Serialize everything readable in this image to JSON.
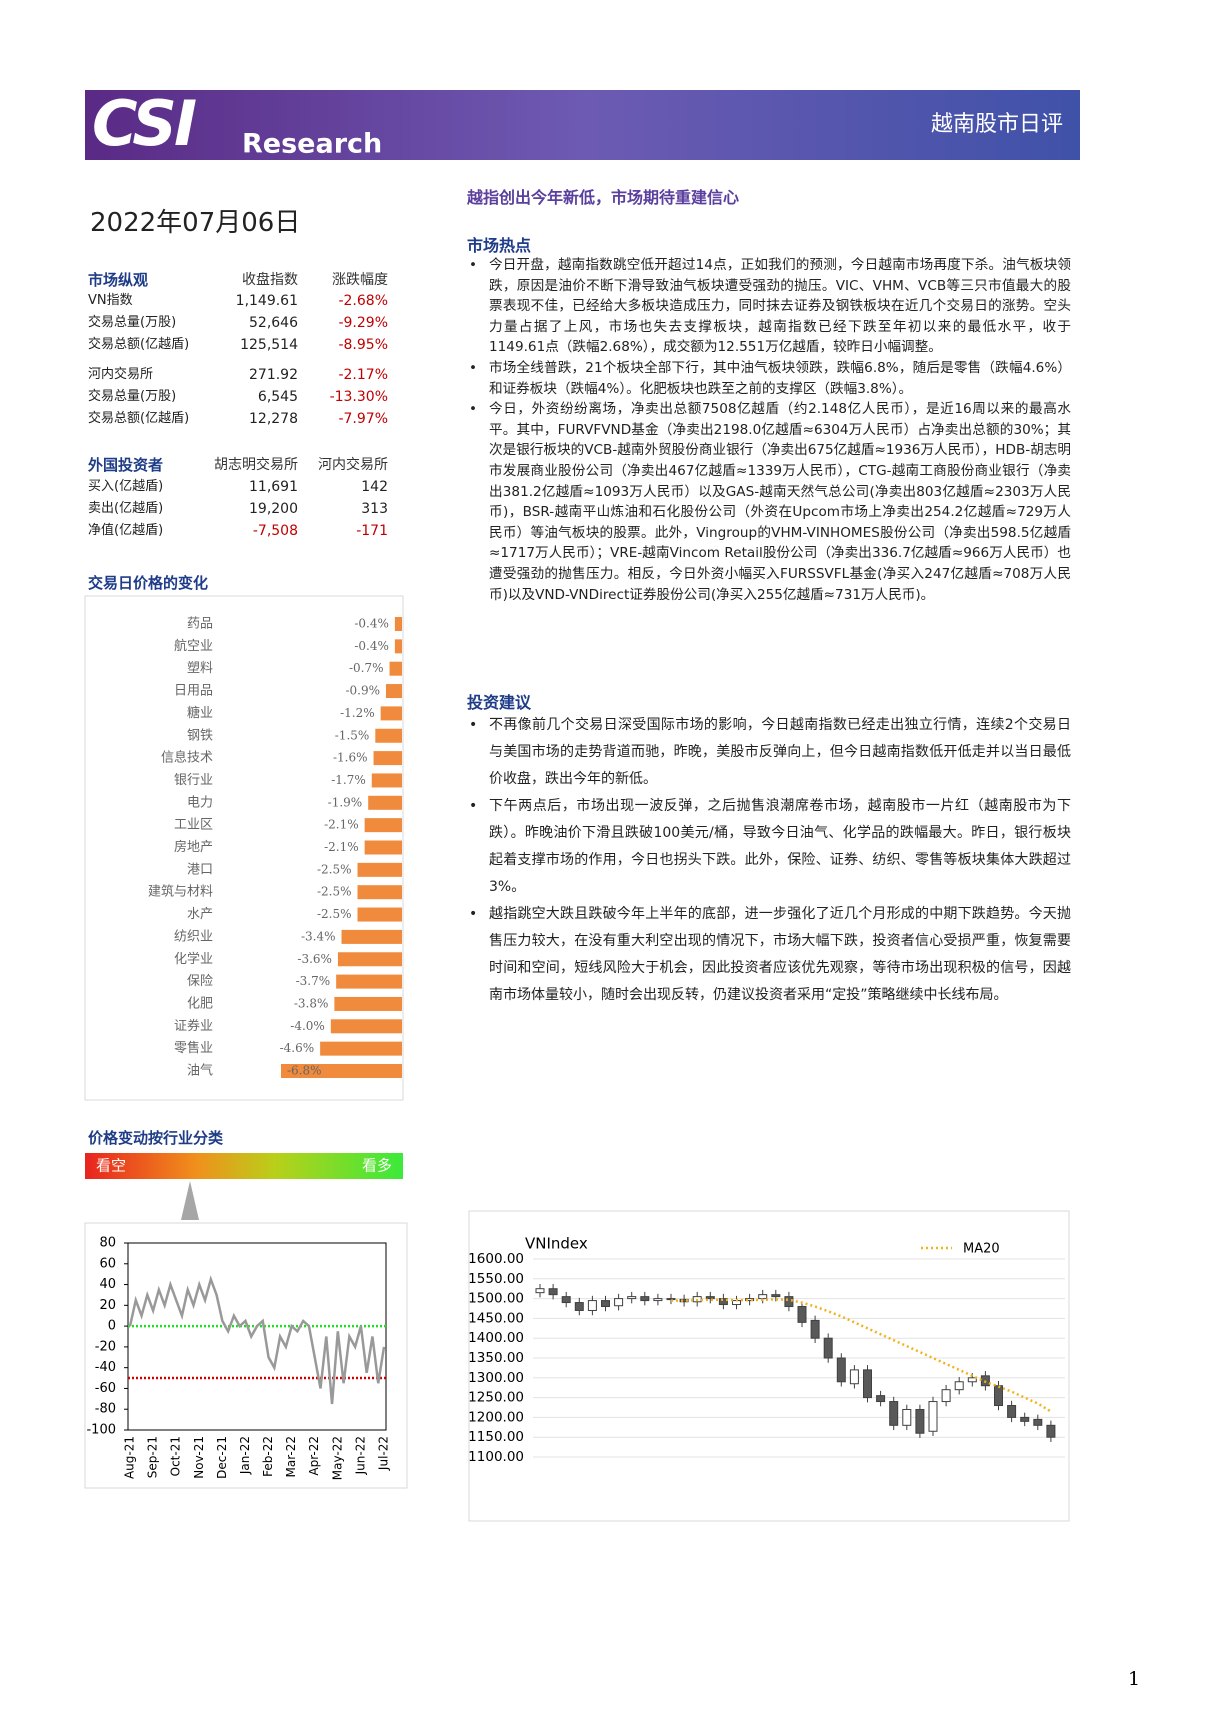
{
  "header": {
    "logo": "CSI",
    "brand": "Research",
    "title": "越南股市日评"
  },
  "date": "2022年07月06日",
  "market_overview": {
    "header": [
      "市场纵观",
      "收盘指数",
      "涨跌幅度"
    ],
    "rows": [
      [
        "VN指数",
        "1,149.61",
        "-2.68%"
      ],
      [
        "交易总量(万股)",
        "52,646",
        "-9.29%"
      ],
      [
        "交易总额(亿越盾)",
        "125,514",
        "-8.95%"
      ],
      [
        "河内交易所",
        "271.92",
        "-2.17%"
      ],
      [
        "交易总量(万股)",
        "6,545",
        "-13.30%"
      ],
      [
        "交易总额(亿越盾)",
        "12,278",
        "-7.97%"
      ]
    ]
  },
  "foreign_investors": {
    "header": [
      "外国投资者",
      "胡志明交易所",
      "河内交易所"
    ],
    "rows": [
      [
        "买入(亿越盾)",
        "11,691",
        "142"
      ],
      [
        "卖出(亿越盾)",
        "19,200",
        "313"
      ],
      [
        "净值(亿越盾)",
        "-7,508",
        "-171"
      ]
    ]
  },
  "headline": "越指创出今年新低，市场期待重建信心",
  "market_hotspots": {
    "title": "市场热点",
    "items": [
      "今日开盘，越南指数跳空低开超过14点，正如我们的预测，今日越南市场再度下杀。油气板块领跌，原因是油价不断下滑导致油气板块遭受强劲的抛压。VIC、VHM、VCB等三只市值最大的股票表现不佳，已经给大多板块造成压力，同时抹去证券及钢铁板块在近几个交易日的涨势。空头力量占据了上风，市场也失去支撑板块，越南指数已经下跌至年初以来的最低水平，收于1149.61点（跌幅2.68%），成交额为12.551万亿越盾，较昨日小幅调整。",
      "市场全线普跌，21个板块全部下行，其中油气板块领跌，跌幅6.8%，随后是零售（跌幅4.6%）和证券板块（跌幅4%）。化肥板块也跌至之前的支撑区（跌幅3.8%）。",
      "今日，外资纷纷离场，净卖出总额7508亿越盾（约2.148亿人民币），是近16周以来的最高水平。其中，FURVFVND基金（净卖出2198.0亿越盾≈6304万人民币）占净卖出总额的30%；其次是银行板块的VCB-越南外贸股份商业银行（净卖出675亿越盾≈1936万人民币），HDB-胡志明市发展商业股份公司（净卖出467亿越盾≈1339万人民币），CTG-越南工商股份商业银行（净卖出381.2亿越盾≈1093万人民币）以及GAS-越南天然气总公司(净卖出803亿越盾≈2303万人民币)，BSR-越南平山炼油和石化股份公司（外资在Upcom市场上净卖出254.2亿越盾≈729万人民币）等油气板块的股票。此外，Vingroup的VHM-VINHOMES股份公司（净卖出598.5亿越盾≈1717万人民币）；VRE-越南Vincom Retail股份公司（净卖出336.7亿越盾≈966万人民币）也遭受强劲的抛售压力。相反，今日外资小幅买入FURSSVFL基金(净买入247亿越盾≈708万人民币)以及VND-VNDirect证券股份公司(净买入255亿越盾≈731万人民币)。"
    ]
  },
  "investment_advice": {
    "title": "投资建议",
    "items": [
      "不再像前几个交易日深受国际市场的影响，今日越南指数已经走出独立行情，连续2个交易日与美国市场的走势背道而驰，昨晚，美股市反弹向上，但今日越南指数低开低走并以当日最低价收盘，跌出今年的新低。",
      "下午两点后，市场出现一波反弹，之后抛售浪潮席卷市场，越南股市一片红（越南股市为下跌）。昨晚油价下滑且跌破100美元/桶，导致今日油气、化学品的跌幅最大。昨日，银行板块起着支撑市场的作用，今日也拐头下跌。此外，保险、证券、纺织、零售等板块集体大跌超过3%。",
      "越指跳空大跌且跌破今年上半年的底部，进一步强化了近几个月形成的中期下跌趋势。今天抛售压力较大，在没有重大利空出现的情况下，市场大幅下跌，投资者信心受损严重，恢复需要时间和空间，短线风险大于机会，因此投资者应该优先观察，等待市场出现积极的信号，因越南市场体量较小，随时会出现反转，仍建议投资者采用“定投”策略继续中长线布局。"
    ]
  },
  "sentiment_scale": {
    "title": "价格变动按行业分类",
    "bearish": "看空",
    "bullish": "看多"
  },
  "page_number": "1",
  "chart_data": [
    {
      "type": "bar",
      "orientation": "horizontal",
      "title": "交易日价格的变化",
      "categories": [
        "药品",
        "航空业",
        "塑料",
        "日用品",
        "糖业",
        "钢铁",
        "信息技术",
        "银行业",
        "电力",
        "工业区",
        "房地产",
        "港口",
        "建筑与材料",
        "水产",
        "纺织业",
        "化学业",
        "保险",
        "化肥",
        "证券业",
        "零售业",
        "油气"
      ],
      "values": [
        -0.4,
        -0.4,
        -0.7,
        -0.9,
        -1.2,
        -1.5,
        -1.6,
        -1.7,
        -1.9,
        -2.1,
        -2.1,
        -2.5,
        -2.5,
        -2.5,
        -3.4,
        -3.6,
        -3.7,
        -3.8,
        -4.0,
        -4.6,
        -6.8
      ],
      "value_labels": [
        "-0.4%",
        "-0.4%",
        "-0.7%",
        "-0.9%",
        "-1.2%",
        "-1.5%",
        "-1.6%",
        "-1.7%",
        "-1.9%",
        "-2.1%",
        "-2.1%",
        "-2.5%",
        "-2.5%",
        "-2.5%",
        "-3.4%",
        "-3.6%",
        "-3.7%",
        "-3.8%",
        "-4.0%",
        "-4.6%",
        "-6.8%"
      ],
      "color": "#f08a3c"
    },
    {
      "type": "line",
      "categories": [
        "Aug-21",
        null,
        null,
        null,
        "Sep-21",
        null,
        null,
        null,
        "Oct-21",
        null,
        null,
        null,
        "Nov-21",
        null,
        null,
        null,
        "Dec-21",
        null,
        null,
        null,
        "Jan-22",
        null,
        null,
        null,
        "Feb-22",
        null,
        null,
        null,
        "Mar-22",
        null,
        null,
        null,
        "Apr-22",
        null,
        null,
        null,
        "May-22",
        null,
        null,
        null,
        "Jun-22",
        null,
        null,
        null,
        "Jul-22"
      ],
      "values": [
        0,
        25,
        10,
        30,
        15,
        35,
        20,
        40,
        25,
        10,
        35,
        20,
        40,
        25,
        45,
        30,
        5,
        -5,
        10,
        0,
        5,
        -10,
        0,
        5,
        -30,
        -40,
        -10,
        -20,
        0,
        -5,
        5,
        0,
        -30,
        -60,
        -10,
        -75,
        -5,
        -55,
        -10,
        -20,
        0,
        -45,
        -10,
        -55,
        -20
      ],
      "color": "#999999",
      "ylim": [
        -100,
        80
      ],
      "yticks": [
        80,
        60,
        40,
        20,
        0,
        -20,
        -40,
        -60,
        -80,
        -100
      ],
      "reference_lines": [
        {
          "value": 0,
          "color": "#22dd22"
        },
        {
          "value": -50,
          "color": "#cc0000"
        }
      ]
    },
    {
      "type": "candlestick",
      "title": "VNIndex",
      "open": [
        1515,
        1525,
        1505,
        1490,
        1470,
        1495,
        1482,
        1500,
        1505,
        1495,
        1500,
        1498,
        1492,
        1505,
        1500,
        1485,
        1495,
        1500,
        1510,
        1505,
        1480,
        1445,
        1400,
        1350,
        1285,
        1320,
        1255,
        1240,
        1180,
        1220,
        1165,
        1240,
        1270,
        1290,
        1305,
        1280,
        1230,
        1200,
        1195,
        1180
      ],
      "high": [
        1537,
        1537,
        1517,
        1502,
        1507,
        1507,
        1512,
        1517,
        1517,
        1512,
        1512,
        1510,
        1517,
        1517,
        1512,
        1507,
        1512,
        1522,
        1522,
        1517,
        1492,
        1457,
        1412,
        1362,
        1332,
        1332,
        1267,
        1252,
        1232,
        1232,
        1252,
        1282,
        1302,
        1312,
        1317,
        1292,
        1242,
        1212,
        1207,
        1192
      ],
      "low": [
        1503,
        1498,
        1478,
        1458,
        1458,
        1468,
        1470,
        1488,
        1483,
        1483,
        1486,
        1480,
        1480,
        1488,
        1473,
        1473,
        1483,
        1488,
        1493,
        1468,
        1428,
        1388,
        1338,
        1278,
        1273,
        1238,
        1228,
        1168,
        1168,
        1148,
        1153,
        1228,
        1258,
        1278,
        1268,
        1218,
        1188,
        1178,
        1168,
        1138
      ],
      "close": [
        1525,
        1510,
        1490,
        1470,
        1495,
        1480,
        1500,
        1505,
        1495,
        1500,
        1498,
        1492,
        1505,
        1500,
        1485,
        1495,
        1500,
        1510,
        1505,
        1480,
        1440,
        1400,
        1350,
        1290,
        1320,
        1250,
        1240,
        1180,
        1220,
        1160,
        1240,
        1270,
        1290,
        1300,
        1280,
        1230,
        1200,
        1190,
        1180,
        1150
      ],
      "up_color": "#ffffff",
      "down_color": "#595959",
      "grid": true,
      "ylim": [
        1100,
        1600
      ],
      "yticks": [
        {
          "value": 1600,
          "label": "1600.00"
        },
        {
          "value": 1550,
          "label": "1550.00"
        },
        {
          "value": 1500,
          "label": "1500.00"
        },
        {
          "value": 1450,
          "label": "1450.00"
        },
        {
          "value": 1400,
          "label": "1400.00"
        },
        {
          "value": 1350,
          "label": "1350.00"
        },
        {
          "value": 1300,
          "label": "1300.00"
        },
        {
          "value": 1250,
          "label": "1250.00"
        },
        {
          "value": 1200,
          "label": "1200.00"
        },
        {
          "value": 1150,
          "label": "1150.00"
        },
        {
          "value": 1100,
          "label": "1100.00"
        }
      ],
      "series": [
        {
          "name": "MA20",
          "color": "#f2b21b",
          "style": "dotted",
          "values": [
            null,
            null,
            null,
            null,
            null,
            null,
            null,
            null,
            null,
            null,
            1495,
            1495,
            1496,
            1497,
            1497,
            1496,
            1496,
            1497,
            1498,
            1497,
            1490,
            1480,
            1468,
            1455,
            1440,
            1425,
            1410,
            1395,
            1380,
            1365,
            1350,
            1335,
            1320,
            1305,
            1290,
            1278,
            1265,
            1250,
            1235,
            1215
          ]
        }
      ]
    }
  ]
}
